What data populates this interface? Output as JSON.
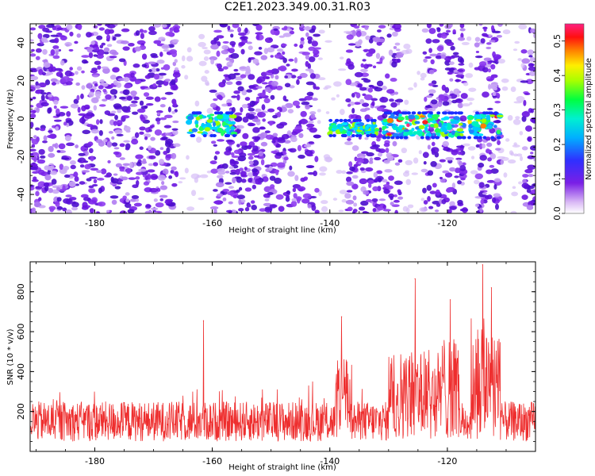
{
  "title": "C2E1.2023.349.00.31.R03",
  "chart_data": [
    {
      "type": "heatmap",
      "xlabel": "Height of straight line (km)",
      "ylabel": "Frequency (Hz)",
      "xlim": [
        -191,
        -105
      ],
      "ylim": [
        -50,
        50
      ],
      "xticks": [
        -180,
        -160,
        -140,
        -120
      ],
      "yticks": [
        -40,
        -20,
        0,
        20,
        40
      ],
      "colorbar": {
        "label": "Normalized spectral amplitude",
        "range": [
          0,
          0.55
        ],
        "ticks": [
          0.0,
          0.1,
          0.2,
          0.3,
          0.4,
          0.5
        ],
        "colormap": "rainbow (violet-blue-cyan-green-yellow-red-pink)"
      },
      "signal_bands": [
        {
          "x": [
            -164,
            -156
          ],
          "freq": [
            -8,
            2
          ],
          "peak_amplitude": 0.25
        },
        {
          "x": [
            -140,
            -132
          ],
          "freq": [
            -8,
            -2
          ],
          "peak_amplitude": 0.3
        },
        {
          "x": [
            -131,
            -111
          ],
          "freq": [
            -9,
            2
          ],
          "peak_amplitude": 0.5
        }
      ],
      "gaps": [
        [
          -166,
          -160
        ],
        [
          -142,
          -137
        ],
        [
          -128,
          -124
        ],
        [
          -117,
          -115
        ],
        [
          -111,
          -107
        ]
      ]
    },
    {
      "type": "line",
      "xlabel": "Height of straight line (km)",
      "ylabel": "SNR (10 * v/v)",
      "xlim": [
        -191,
        -105
      ],
      "ylim": [
        0,
        950
      ],
      "xticks": [
        -180,
        -160,
        -140,
        -120
      ],
      "yticks": [
        200,
        400,
        600,
        800
      ],
      "color": "#ee2e2e",
      "baseline_range": [
        50,
        250
      ],
      "peaks": [
        {
          "x": -161.5,
          "y": 655
        },
        {
          "x": -138,
          "y": 675
        },
        {
          "x": -125.5,
          "y": 865
        },
        {
          "x": -119.5,
          "y": 760
        },
        {
          "x": -114,
          "y": 935
        },
        {
          "x": -112.5,
          "y": 820
        }
      ],
      "elevated_regions": [
        {
          "x": [
            -139,
            -136
          ],
          "level": 420
        },
        {
          "x": [
            -130,
            -121
          ],
          "level": 450
        },
        {
          "x": [
            -121,
            -118
          ],
          "level": 520
        },
        {
          "x": [
            -116,
            -111
          ],
          "level": 620
        }
      ]
    }
  ]
}
